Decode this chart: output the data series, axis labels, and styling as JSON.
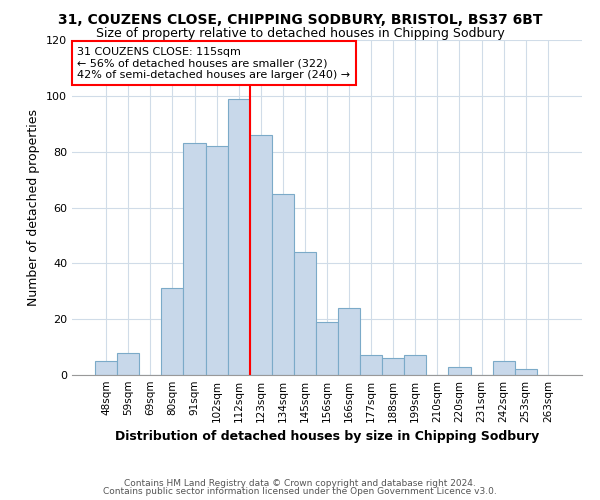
{
  "title1": "31, COUZENS CLOSE, CHIPPING SODBURY, BRISTOL, BS37 6BT",
  "title2": "Size of property relative to detached houses in Chipping Sodbury",
  "xlabel": "Distribution of detached houses by size in Chipping Sodbury",
  "ylabel": "Number of detached properties",
  "bin_labels": [
    "48sqm",
    "59sqm",
    "69sqm",
    "80sqm",
    "91sqm",
    "102sqm",
    "112sqm",
    "123sqm",
    "134sqm",
    "145sqm",
    "156sqm",
    "166sqm",
    "177sqm",
    "188sqm",
    "199sqm",
    "210sqm",
    "220sqm",
    "231sqm",
    "242sqm",
    "253sqm",
    "263sqm"
  ],
  "bar_heights": [
    5,
    8,
    0,
    31,
    83,
    82,
    99,
    86,
    65,
    44,
    19,
    24,
    7,
    6,
    7,
    0,
    3,
    0,
    5,
    2,
    0
  ],
  "bar_color": "#c8d8ea",
  "bar_edge_color": "#7baac8",
  "vline_color": "red",
  "annotation_title": "31 COUZENS CLOSE: 115sqm",
  "annotation_line1": "← 56% of detached houses are smaller (322)",
  "annotation_line2": "42% of semi-detached houses are larger (240) →",
  "annotation_box_color": "white",
  "annotation_box_edge": "red",
  "ylim": [
    0,
    120
  ],
  "yticks": [
    0,
    20,
    40,
    60,
    80,
    100,
    120
  ],
  "footer1": "Contains HM Land Registry data © Crown copyright and database right 2024.",
  "footer2": "Contains public sector information licensed under the Open Government Licence v3.0.",
  "background_color": "#ffffff",
  "plot_background": "#ffffff",
  "grid_color": "#d0dce8"
}
